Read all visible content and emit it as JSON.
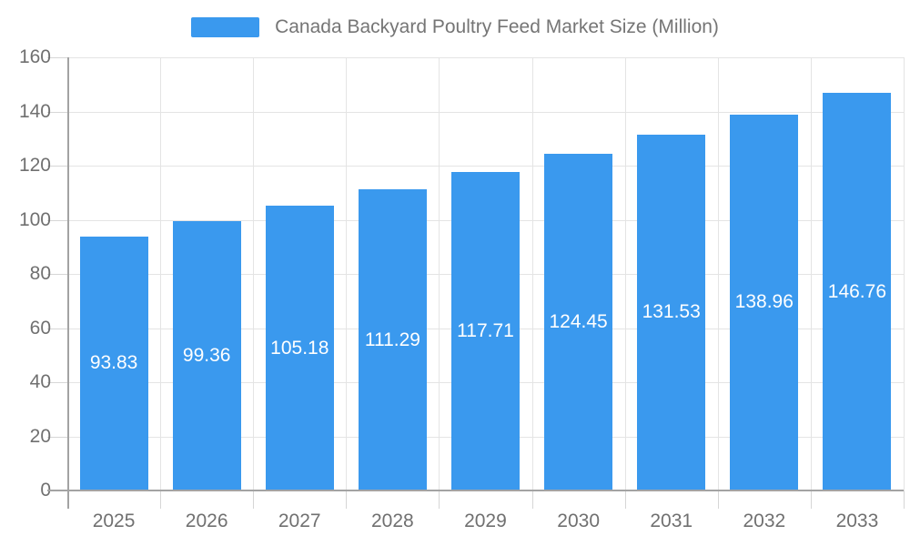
{
  "legend": {
    "label": "Canada Backyard Poultry Feed Market Size (Million)"
  },
  "chart_data": {
    "type": "bar",
    "title": "Canada Backyard Poultry Feed Market Size (Million)",
    "series_name": "Canada Backyard Poultry Feed Market Size (Million)",
    "categories": [
      "2025",
      "2026",
      "2027",
      "2028",
      "2029",
      "2030",
      "2031",
      "2032",
      "2033"
    ],
    "values": [
      93.83,
      99.36,
      105.18,
      111.29,
      117.71,
      124.45,
      131.53,
      138.96,
      146.76
    ],
    "value_labels": [
      "93.83",
      "99.36",
      "105.18",
      "111.29",
      "117.71",
      "124.45",
      "131.53",
      "138.96",
      "146.76"
    ],
    "xlabel": "",
    "ylabel": "",
    "ylim": [
      0,
      160
    ],
    "y_ticks": [
      "0",
      "20",
      "40",
      "60",
      "80",
      "100",
      "120",
      "140",
      "160"
    ],
    "grid": true,
    "legend_position": "top",
    "colors": {
      "bar": "#3a99ee",
      "value_label": "#ffffff",
      "axis": "#a3a3a3",
      "gridline": "#e4e4e4",
      "tick_mark": "#d6d6d6",
      "tick_label": "#707070",
      "legend_text": "#757575",
      "background": "#ffffff"
    }
  }
}
